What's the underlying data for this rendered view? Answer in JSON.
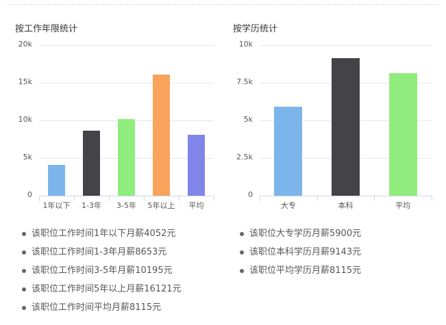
{
  "charts": {
    "experience": {
      "title": "按工作年限统计",
      "y_ticks": [
        "0",
        "5k",
        "10k",
        "15k",
        "20k"
      ],
      "categories": [
        "1年以下",
        "1-3年",
        "3-5年",
        "5年以上",
        "平均"
      ]
    },
    "education": {
      "title": "按学历统计",
      "y_ticks": [
        "0",
        "2.5k",
        "5k",
        "7.5k",
        "10k"
      ],
      "categories": [
        "大专",
        "本科",
        "平均"
      ]
    }
  },
  "lists": {
    "experience": [
      "该职位工作时间1年以下月薪4052元",
      "该职位工作时间1-3年月薪8653元",
      "该职位工作时间3-5年月薪10195元",
      "该职位工作时间5年以上月薪16121元",
      "该职位工作时间平均月薪8115元"
    ],
    "education": [
      "该职位大专学历月薪5900元",
      "该职位本科学历月薪9143元",
      "该职位平均学历月薪8115元"
    ]
  },
  "chart_data": [
    {
      "type": "bar",
      "title": "按工作年限统计",
      "categories": [
        "1年以下",
        "1-3年",
        "3-5年",
        "5年以上",
        "平均"
      ],
      "values": [
        4052,
        8653,
        10195,
        16121,
        8115
      ],
      "colors": [
        "#7cb5ec",
        "#434348",
        "#90ed7d",
        "#f7a35c",
        "#8085e9"
      ],
      "xlabel": "",
      "ylabel": "",
      "ylim": [
        0,
        20000
      ],
      "y_ticks": [
        "0",
        "5k",
        "10k",
        "15k",
        "20k"
      ],
      "grid": true,
      "legend": false
    },
    {
      "type": "bar",
      "title": "按学历统计",
      "categories": [
        "大专",
        "本科",
        "平均"
      ],
      "values": [
        5900,
        9143,
        8115
      ],
      "colors": [
        "#7cb5ec",
        "#434348",
        "#90ed7d"
      ],
      "xlabel": "",
      "ylabel": "",
      "ylim": [
        0,
        10000
      ],
      "y_ticks": [
        "0",
        "2.5k",
        "5k",
        "7.5k",
        "10k"
      ],
      "grid": true,
      "legend": false
    }
  ]
}
